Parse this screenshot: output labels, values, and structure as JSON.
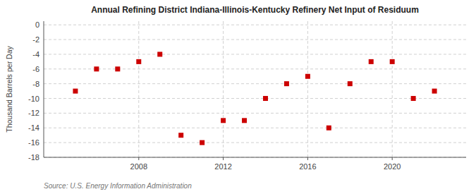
{
  "chart_data": {
    "type": "scatter",
    "title": "Annual Refining District Indiana-Illinois-Kentucky Refinery Net Input of Residuum",
    "y_label": "Thousand Barrels per Day",
    "annotations": [
      "Source: U.S. Energy Information Administration"
    ],
    "x": [
      2005,
      2006,
      2007,
      2008,
      2009,
      2010,
      2011,
      2012,
      2013,
      2014,
      2015,
      2016,
      2017,
      2018,
      2019,
      2020,
      2021,
      2022
    ],
    "values": [
      -9.0,
      -6.0,
      -6.0,
      -5.0,
      -4.0,
      -15.0,
      -16.0,
      -13.0,
      -13.0,
      -10.0,
      -8.0,
      -7.0,
      -14.0,
      -8.0,
      -5.0,
      -5.0,
      -10.0,
      -9.0
    ],
    "color": "#cc0000",
    "marker": "square",
    "xlim": [
      2003.5,
      2023.5
    ],
    "xticks": [
      2008,
      2012,
      2016,
      2020
    ],
    "ylim": [
      -18,
      0.5
    ],
    "yticks": [
      0,
      -2,
      -4,
      -6,
      -8,
      -10,
      -12,
      -14,
      -16,
      -18
    ],
    "grid": true
  }
}
